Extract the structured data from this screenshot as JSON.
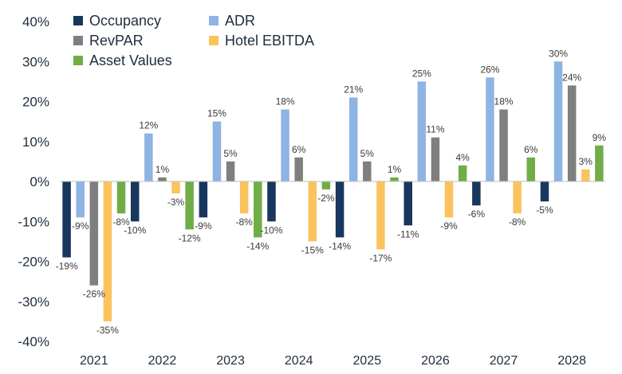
{
  "chart_data": {
    "type": "bar",
    "categories": [
      "2021",
      "2022",
      "2023",
      "2024",
      "2025",
      "2026",
      "2027",
      "2028"
    ],
    "ylim": [
      -40,
      40
    ],
    "yticks": [
      "40%",
      "30%",
      "20%",
      "10%",
      "0%",
      "-10%",
      "-20%",
      "-30%",
      "-40%"
    ],
    "grid": false,
    "legend": "top-left",
    "series": [
      {
        "name": "Occupancy",
        "color": "#17375e",
        "values": [
          -19,
          -10,
          -9,
          -10,
          -14,
          -11,
          -6,
          -5
        ],
        "labels": [
          "-19%",
          "-10%",
          "-9%",
          "-10%",
          "-14%",
          "-11%",
          "-6%",
          "-5%"
        ]
      },
      {
        "name": "ADR",
        "color": "#8eb4e3",
        "values": [
          -9,
          12,
          15,
          18,
          21,
          25,
          26,
          30
        ],
        "labels": [
          "-9%",
          "12%",
          "15%",
          "18%",
          "21%",
          "25%",
          "26%",
          "30%"
        ]
      },
      {
        "name": "RevPAR",
        "color": "#7f7f7f",
        "values": [
          -26,
          1,
          5,
          6,
          5,
          11,
          18,
          24
        ],
        "labels": [
          "-26%",
          "1%",
          "5%",
          "6%",
          "5%",
          "11%",
          "18%",
          "24%"
        ]
      },
      {
        "name": "Hotel EBITDA",
        "color": "#fac35e",
        "values": [
          -35,
          -3,
          -8,
          -15,
          -17,
          -9,
          -8,
          3
        ],
        "labels": [
          "-35%",
          "-3%",
          "-8%",
          "-15%",
          "-17%",
          "-9%",
          "-8%",
          "3%"
        ]
      },
      {
        "name": "Asset Values",
        "color": "#70ad47",
        "values": [
          -8,
          -12,
          -14,
          -2,
          1,
          4,
          6,
          9
        ],
        "labels": [
          "-8%",
          "-12%",
          "-14%",
          "-2%",
          "1%",
          "4%",
          "6%",
          "9%"
        ]
      }
    ]
  }
}
